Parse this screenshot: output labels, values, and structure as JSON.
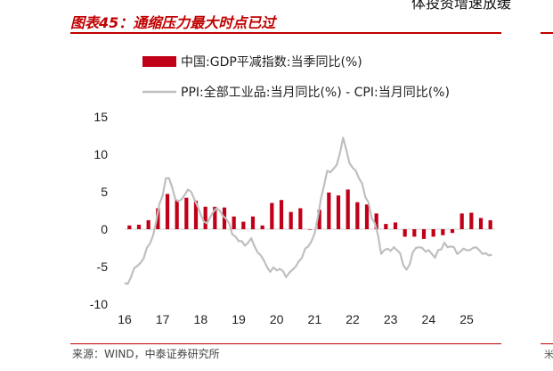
{
  "page": {
    "cut_top_text": "体投资增速放缓",
    "figure_title": "图表45：通缩压力最大时点已过",
    "source": "来源：WIND，中泰证券研究所",
    "edge_mark": "米",
    "accent_color": "#c00000"
  },
  "chart_data": {
    "type": "bar+line",
    "title": "通缩压力最大时点已过",
    "legend": [
      "中国:GDP平减指数:当季同比(%)",
      "PPI:全部工业品:当月同比(%) - CPI:当月同比(%)"
    ],
    "ylim": [
      -10,
      15
    ],
    "yticks": [
      15,
      10,
      5,
      0,
      -5,
      -10
    ],
    "xlim": [
      2016.0,
      2025.75
    ],
    "xticks": [
      16,
      17,
      18,
      19,
      20,
      21,
      22,
      23,
      24,
      25
    ],
    "colors": {
      "bars": "#c00018",
      "line": "#bfbfbf"
    },
    "series": [
      {
        "name": "中国:GDP平减指数:当季同比(%)",
        "kind": "bar",
        "x": [
          2016.125,
          2016.375,
          2016.625,
          2016.875,
          2017.125,
          2017.375,
          2017.625,
          2017.875,
          2018.125,
          2018.375,
          2018.625,
          2018.875,
          2019.125,
          2019.375,
          2019.625,
          2019.875,
          2020.125,
          2020.375,
          2020.625,
          2020.875,
          2021.125,
          2021.375,
          2021.625,
          2021.875,
          2022.125,
          2022.375,
          2022.625,
          2022.875,
          2023.125,
          2023.375,
          2023.625,
          2023.875,
          2024.125,
          2024.375,
          2024.625,
          2024.875,
          2025.125,
          2025.375,
          2025.625
        ],
        "values": [
          0.5,
          0.6,
          1.2,
          2.8,
          4.7,
          3.9,
          4.2,
          3.8,
          3.0,
          3.0,
          2.9,
          1.7,
          1.0,
          1.7,
          0.5,
          3.5,
          3.9,
          2.3,
          2.8,
          0.0,
          2.6,
          4.9,
          4.5,
          5.3,
          3.6,
          3.3,
          2.1,
          0.7,
          0.9,
          -1.0,
          -1.0,
          -1.3,
          -1.0,
          -0.8,
          -0.5,
          2.1,
          2.2,
          1.5,
          1.2
        ]
      },
      {
        "name": "PPI:全部工业品:当月同比(%) - CPI:当月同比(%)",
        "kind": "line",
        "x": [
          2016.0,
          2016.083,
          2016.167,
          2016.25,
          2016.333,
          2016.417,
          2016.5,
          2016.583,
          2016.667,
          2016.75,
          2016.833,
          2016.917,
          2017.0,
          2017.083,
          2017.167,
          2017.25,
          2017.333,
          2017.417,
          2017.5,
          2017.583,
          2017.667,
          2017.75,
          2017.833,
          2017.917,
          2018.0,
          2018.083,
          2018.167,
          2018.25,
          2018.333,
          2018.417,
          2018.5,
          2018.583,
          2018.667,
          2018.75,
          2018.833,
          2018.917,
          2019.0,
          2019.083,
          2019.167,
          2019.25,
          2019.333,
          2019.417,
          2019.5,
          2019.583,
          2019.667,
          2019.75,
          2019.833,
          2019.917,
          2020.0,
          2020.083,
          2020.167,
          2020.25,
          2020.333,
          2020.417,
          2020.5,
          2020.583,
          2020.667,
          2020.75,
          2020.833,
          2020.917,
          2021.0,
          2021.083,
          2021.167,
          2021.25,
          2021.333,
          2021.417,
          2021.5,
          2021.583,
          2021.667,
          2021.75,
          2021.833,
          2021.917,
          2022.0,
          2022.083,
          2022.167,
          2022.25,
          2022.333,
          2022.417,
          2022.5,
          2022.583,
          2022.667,
          2022.75,
          2022.833,
          2022.917,
          2023.0,
          2023.083,
          2023.167,
          2023.25,
          2023.333,
          2023.417,
          2023.5,
          2023.583,
          2023.667,
          2023.75,
          2023.833,
          2023.917,
          2024.0,
          2024.083,
          2024.167,
          2024.25,
          2024.333,
          2024.417,
          2024.5,
          2024.583,
          2024.667,
          2024.75,
          2024.833,
          2024.917,
          2025.0,
          2025.083,
          2025.167,
          2025.25,
          2025.333,
          2025.417,
          2025.5,
          2025.583,
          2025.667
        ],
        "values": [
          -7.2,
          -7.3,
          -6.4,
          -5.2,
          -4.9,
          -4.5,
          -3.9,
          -2.5,
          -1.9,
          -0.8,
          1.1,
          3.4,
          4.5,
          6.8,
          6.8,
          5.6,
          4.0,
          3.7,
          4.0,
          4.6,
          5.3,
          5.0,
          4.0,
          3.1,
          2.0,
          1.0,
          0.8,
          1.6,
          2.3,
          2.8,
          2.5,
          1.8,
          1.4,
          0.8,
          -0.7,
          -1.0,
          -1.6,
          -1.6,
          -2.2,
          -1.8,
          -1.2,
          -2.3,
          -3.1,
          -3.5,
          -4.2,
          -5.1,
          -5.7,
          -5.1,
          -5.5,
          -5.3,
          -5.6,
          -6.4,
          -5.8,
          -5.4,
          -5.0,
          -4.3,
          -3.8,
          -2.6,
          -2.3,
          -1.6,
          -0.6,
          1.6,
          4.1,
          5.9,
          7.8,
          7.6,
          8.1,
          8.6,
          10.2,
          12.2,
          10.6,
          8.8,
          8.2,
          7.8,
          6.8,
          6.1,
          4.3,
          3.6,
          1.5,
          0.8,
          -0.8,
          -3.3,
          -2.8,
          -2.6,
          -2.9,
          -2.4,
          -2.8,
          -3.2,
          -4.8,
          -5.4,
          -4.7,
          -3.1,
          -2.5,
          -2.4,
          -2.5,
          -3.0,
          -2.8,
          -3.3,
          -3.8,
          -2.8,
          -2.7,
          -1.8,
          -2.4,
          -2.3,
          -2.4,
          -3.3,
          -3.0,
          -2.6,
          -2.8,
          -2.8,
          -2.5,
          -2.4,
          -2.8,
          -3.3,
          -3.2,
          -3.5,
          -3.4
        ]
      }
    ]
  }
}
